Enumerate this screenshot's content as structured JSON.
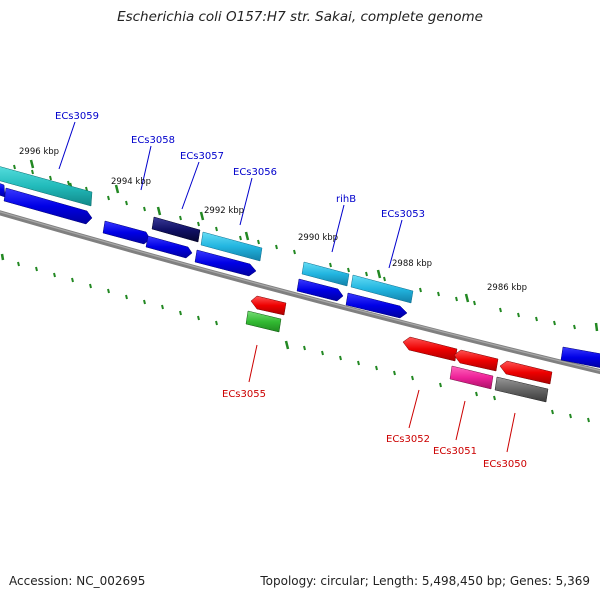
{
  "title": "Escherichia coli O157:H7 str. Sakai, complete genome",
  "footer": {
    "accession": "Accession: NC_002695",
    "summary": "Topology: circular; Length: 5,498,450 bp; Genes: 5,369"
  },
  "scale_labels": [
    "2996 kbp",
    "2994 kbp",
    "2992 kbp",
    "2990 kbp",
    "2988 kbp",
    "2986 kbp"
  ],
  "genes": {
    "forward": [
      {
        "label": "ECs3059",
        "color": "#1f3fbf"
      },
      {
        "label": "ECs3058",
        "color": "#1f3fbf"
      },
      {
        "label": "ECs3057",
        "color": "#1f3fbf"
      },
      {
        "label": "ECs3056",
        "color": "#1f3fbf"
      },
      {
        "label": "rihB",
        "color": "#1f3fbf"
      },
      {
        "label": "ECs3053",
        "color": "#1f3fbf"
      }
    ],
    "reverse": [
      {
        "label": "ECs3055",
        "color": "#cc0000"
      },
      {
        "label": "ECs3052",
        "color": "#cc0000"
      },
      {
        "label": "ECs3051",
        "color": "#cc0000"
      },
      {
        "label": "ECs3050",
        "color": "#cc0000"
      }
    ]
  },
  "colors": {
    "backbone": "#808080",
    "forward_cds": "#0000ee",
    "cyan_feature": "#33bbdd",
    "teal_feature": "#22bbbb",
    "navy_feature": "#111166",
    "reverse_cds": "#ee0000",
    "green_feature": "#33bb33",
    "magenta_feature": "#ee2299",
    "gray_feature": "#666666",
    "tick": "#228822"
  }
}
